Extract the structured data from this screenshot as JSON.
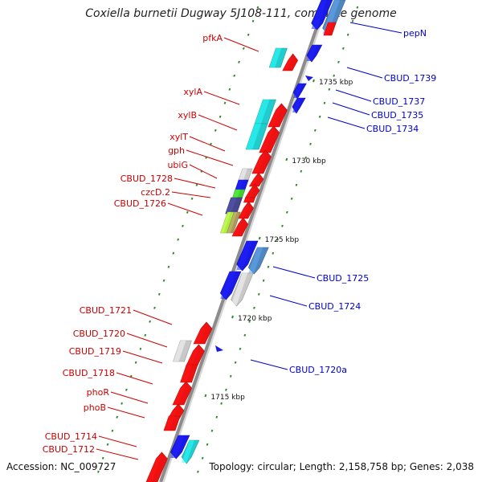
{
  "title": "Coxiella burnetii Dugway 5J108-111, complete genome",
  "footer": {
    "accession": "Accession: NC_009727",
    "summary": "Topology: circular; Length: 2,158,758 bp; Genes: 2,038"
  },
  "colors": {
    "backbone": "#8c8c8c",
    "tick": "#2e8b2e",
    "forward_label": "#cc0000",
    "reverse_label": "#0000cc",
    "red": "#ee1111",
    "blue": "#1a1ae6",
    "cyan": "#22cccc",
    "steel": "#4f86c0",
    "grey": "#c8c8c8",
    "navy": "#46468f",
    "lime": "#aaee44",
    "olive": "#a89a5a"
  },
  "scale_labels": [
    {
      "text": "1735 kbp",
      "x": 1735
    },
    {
      "text": "1730 kbp",
      "x": 1730
    },
    {
      "text": "1725 kbp",
      "x": 1725
    },
    {
      "text": "1720 kbp",
      "x": 1720
    },
    {
      "text": "1715 kbp",
      "x": 1715
    }
  ],
  "forward_labels": [
    {
      "text": "pfkA"
    },
    {
      "text": "xylA"
    },
    {
      "text": "xylB"
    },
    {
      "text": "xylT"
    },
    {
      "text": "gph"
    },
    {
      "text": "ubiG"
    },
    {
      "text": "CBUD_1728"
    },
    {
      "text": "czcD.2"
    },
    {
      "text": "CBUD_1726"
    },
    {
      "text": "CBUD_1721"
    },
    {
      "text": "CBUD_1720"
    },
    {
      "text": "CBUD_1719"
    },
    {
      "text": "CBUD_1718"
    },
    {
      "text": "phoR"
    },
    {
      "text": "phoB"
    },
    {
      "text": "CBUD_1714"
    },
    {
      "text": "CBUD_1712"
    }
  ],
  "reverse_labels": [
    {
      "text": "pepN"
    },
    {
      "text": "CBUD_1739"
    },
    {
      "text": "CBUD_1737"
    },
    {
      "text": "CBUD_1735"
    },
    {
      "text": "CBUD_1734"
    },
    {
      "text": "CBUD_1725"
    },
    {
      "text": "CBUD_1724"
    },
    {
      "text": "CBUD_1720a"
    }
  ]
}
